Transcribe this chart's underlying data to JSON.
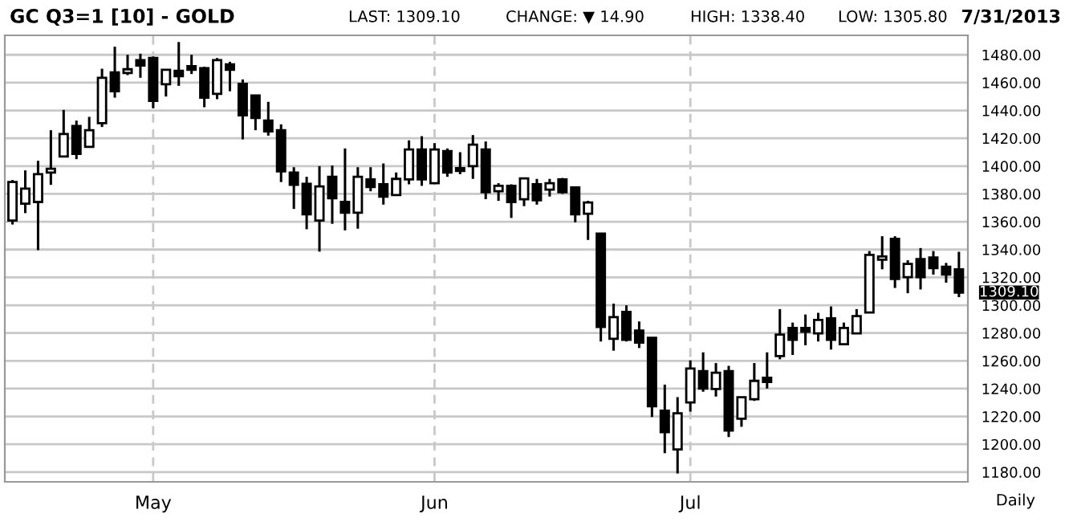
{
  "chart_data": {
    "type": "candlestick",
    "title": "GC Q3=1 [10] - GOLD",
    "annotations": [
      "LAST: 1309.10",
      "CHANGE: ▼ 14.90",
      "HIGH: 1338.40",
      "LOW: 1305.80",
      "7/31/2013",
      "Daily",
      "1309.10"
    ],
    "categories": [
      null,
      null,
      null,
      null,
      null,
      null,
      null,
      null,
      null,
      null,
      null,
      "May",
      null,
      null,
      null,
      null,
      null,
      null,
      null,
      null,
      null,
      null,
      null,
      null,
      null,
      null,
      null,
      null,
      null,
      null,
      null,
      null,
      null,
      "Jun",
      null,
      null,
      null,
      null,
      null,
      null,
      null,
      null,
      null,
      null,
      null,
      null,
      null,
      null,
      null,
      null,
      null,
      null,
      null,
      "Jul",
      null,
      null,
      null,
      null,
      null,
      null,
      null,
      null,
      null,
      null,
      null,
      null,
      null,
      null,
      null,
      null,
      null,
      null,
      null,
      null,
      null
    ],
    "ohlc": [
      [
        1360.8,
        1390,
        1358,
        1388.5
      ],
      [
        1373,
        1396.9,
        1366.2,
        1383.8
      ],
      [
        1374.2,
        1403.8,
        1339.6,
        1394.2
      ],
      [
        1395.4,
        1425.8,
        1386.5,
        1398.1
      ],
      [
        1406.9,
        1440.4,
        1406.9,
        1423.1
      ],
      [
        1428.8,
        1432.7,
        1405,
        1408.8
      ],
      [
        1413.8,
        1435.4,
        1413.8,
        1425.8
      ],
      [
        1430.8,
        1470,
        1428.1,
        1463.5
      ],
      [
        1467.3,
        1485.8,
        1449.2,
        1453.8
      ],
      [
        1466.9,
        1480,
        1465.4,
        1469.6
      ],
      [
        1476.2,
        1480.8,
        1463.5,
        1472.3
      ],
      [
        1477.7,
        1478.8,
        1441.5,
        1446.9
      ],
      [
        1458.8,
        1469.2,
        1450,
        1469.2
      ],
      [
        1468.5,
        1489.2,
        1457.7,
        1464.6
      ],
      [
        1471.9,
        1480,
        1466.2,
        1469.2
      ],
      [
        1470.4,
        1471.5,
        1442.3,
        1449.2
      ],
      [
        1451.9,
        1477.7,
        1448.1,
        1476.2
      ],
      [
        1473.1,
        1475,
        1453.8,
        1469.2
      ],
      [
        1459.2,
        1462.3,
        1419.2,
        1436.5
      ],
      [
        1450.8,
        1450.8,
        1425.8,
        1434.6
      ],
      [
        1432.7,
        1446.2,
        1421.9,
        1425
      ],
      [
        1425.8,
        1430,
        1388.5,
        1396.2
      ],
      [
        1395.4,
        1399.2,
        1369.2,
        1386.5
      ],
      [
        1387.3,
        1392.3,
        1354.6,
        1365.4
      ],
      [
        1360.8,
        1400,
        1338.5,
        1385.4
      ],
      [
        1392.3,
        1400.4,
        1358.5,
        1376.9
      ],
      [
        1374.2,
        1412.7,
        1353.8,
        1366.5
      ],
      [
        1366.5,
        1399.2,
        1355,
        1392.3
      ],
      [
        1390.4,
        1399.2,
        1381.9,
        1385
      ],
      [
        1386.9,
        1401.9,
        1372.3,
        1378.1
      ],
      [
        1379.2,
        1395.4,
        1379.2,
        1390.8
      ],
      [
        1390.4,
        1418.5,
        1386.9,
        1411.9
      ],
      [
        1411.9,
        1421.5,
        1385.8,
        1390.4
      ],
      [
        1387.7,
        1416.5,
        1387.7,
        1411.9
      ],
      [
        1410.8,
        1412.7,
        1392.3,
        1395.4
      ],
      [
        1398.5,
        1410,
        1394.2,
        1396.5
      ],
      [
        1400,
        1422.3,
        1390.8,
        1415.4
      ],
      [
        1411.9,
        1417.7,
        1376.2,
        1381.2
      ],
      [
        1381.9,
        1387.7,
        1375,
        1385.8
      ],
      [
        1385.8,
        1386.9,
        1362.7,
        1374.2
      ],
      [
        1376.2,
        1391.2,
        1371.2,
        1391.2
      ],
      [
        1386.9,
        1390.8,
        1372.3,
        1375.4
      ],
      [
        1383.1,
        1390.8,
        1378.1,
        1387.7
      ],
      [
        1390.4,
        1391.5,
        1380,
        1381.2
      ],
      [
        1384.6,
        1384.6,
        1359.6,
        1365.4
      ],
      [
        1365.8,
        1375,
        1346.9,
        1373.8
      ],
      [
        1351.5,
        1351.5,
        1273.9,
        1284.4
      ],
      [
        1275.8,
        1301.1,
        1267.3,
        1291.4
      ],
      [
        1295.2,
        1299.9,
        1273.9,
        1275.1
      ],
      [
        1281.7,
        1288.3,
        1269.2,
        1273.1
      ],
      [
        1276.6,
        1276.6,
        1219.6,
        1227.3
      ],
      [
        1224.2,
        1242.9,
        1193.6,
        1208.7
      ],
      [
        1196.3,
        1233.9,
        1179,
        1222.3
      ],
      [
        1230.1,
        1260.3,
        1223.5,
        1254.5
      ],
      [
        1252.6,
        1266.1,
        1237.8,
        1240.1
      ],
      [
        1239.8,
        1258.4,
        1234.3,
        1251.4
      ],
      [
        1252.6,
        1256.4,
        1205.2,
        1209.9
      ],
      [
        1218.4,
        1233.9,
        1212.6,
        1233.9
      ],
      [
        1232.4,
        1258.4,
        1231.2,
        1245.6
      ],
      [
        1247.9,
        1266.1,
        1240.1,
        1244.8
      ],
      [
        1263.4,
        1297.2,
        1261.1,
        1278.9
      ],
      [
        1283.6,
        1287.5,
        1264.2,
        1275.1
      ],
      [
        1283.6,
        1293.3,
        1271.2,
        1280.9
      ],
      [
        1279.7,
        1294.5,
        1273.9,
        1289.4
      ],
      [
        1290.6,
        1299.1,
        1268.1,
        1275.1
      ],
      [
        1271.9,
        1287.5,
        1271.9,
        1283.6
      ],
      [
        1279.7,
        1297.2,
        1279.7,
        1292.1
      ],
      [
        1294.8,
        1338.9,
        1294.8,
        1336.2
      ],
      [
        1332.7,
        1349.6,
        1325.8,
        1335
      ],
      [
        1347.7,
        1349.6,
        1312.4,
        1318.9
      ],
      [
        1320.1,
        1332.3,
        1308.6,
        1329.7
      ],
      [
        1333.1,
        1341.1,
        1311.3,
        1320.1
      ],
      [
        1334.3,
        1338.9,
        1322,
        1326.6
      ],
      [
        1327.7,
        1330.4,
        1316.2,
        1322
      ],
      [
        1325.8,
        1338.4,
        1305.8,
        1309.1
      ]
    ],
    "ylim": [
      1173,
      1494
    ],
    "yticks": [
      {
        "value": 1180,
        "label": "1180.00"
      },
      {
        "value": 1200,
        "label": "1200.00"
      },
      {
        "value": 1220,
        "label": "1220.00"
      },
      {
        "value": 1240,
        "label": "1240.00"
      },
      {
        "value": 1260,
        "label": "1260.00"
      },
      {
        "value": 1280,
        "label": "1280.00"
      },
      {
        "value": 1300,
        "label": "1300.00"
      },
      {
        "value": 1320,
        "label": "1320.00"
      },
      {
        "value": 1340,
        "label": "1340.00"
      },
      {
        "value": 1360,
        "label": "1360.00"
      },
      {
        "value": 1380,
        "label": "1380.00"
      },
      {
        "value": 1400,
        "label": "1400.00"
      },
      {
        "value": 1420,
        "label": "1420.00"
      },
      {
        "value": 1440,
        "label": "1440.00"
      },
      {
        "value": 1460,
        "label": "1460.00"
      },
      {
        "value": 1480,
        "label": "1480.00"
      }
    ],
    "grid": true
  }
}
